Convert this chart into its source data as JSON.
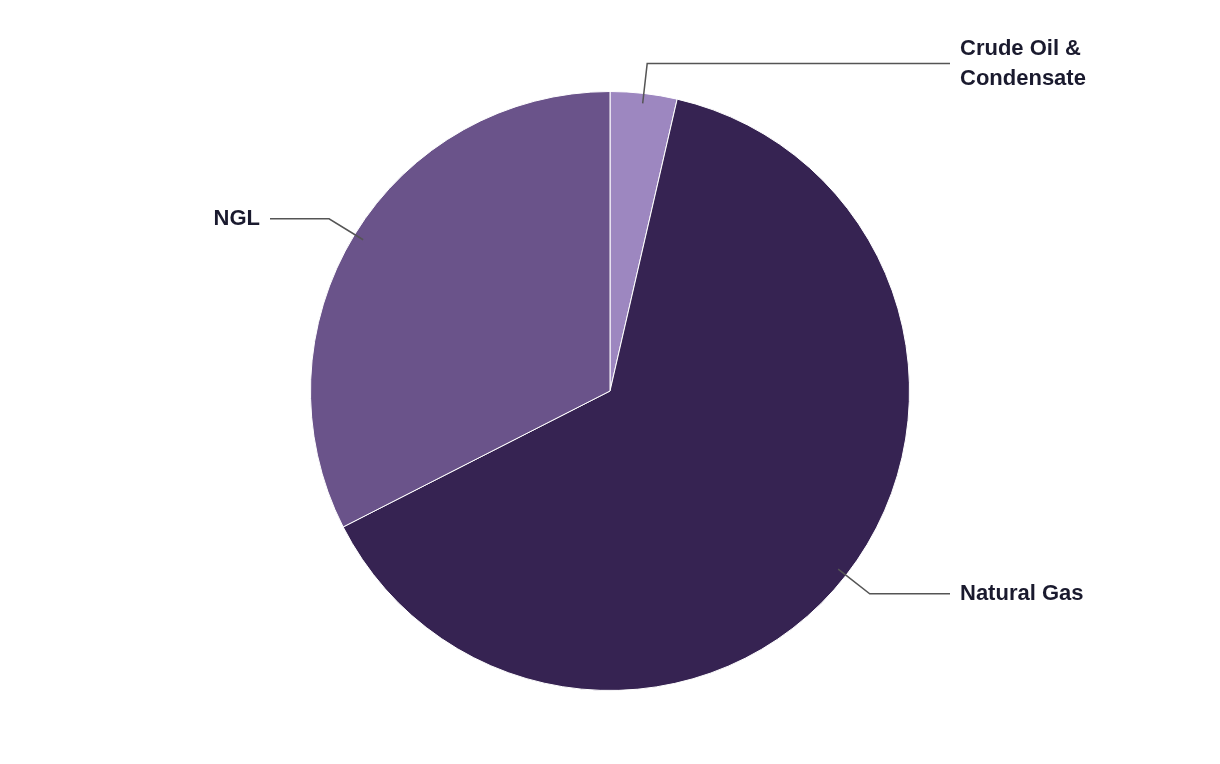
{
  "chart_data": {
    "type": "pie",
    "categories": [
      "Crude Oil & Condensate",
      "Natural Gas",
      "NGL"
    ],
    "values": [
      3.6,
      63.9,
      32.5
    ],
    "colors": [
      "#9d87c0",
      "#362352",
      "#6a538a"
    ],
    "legend": false
  }
}
